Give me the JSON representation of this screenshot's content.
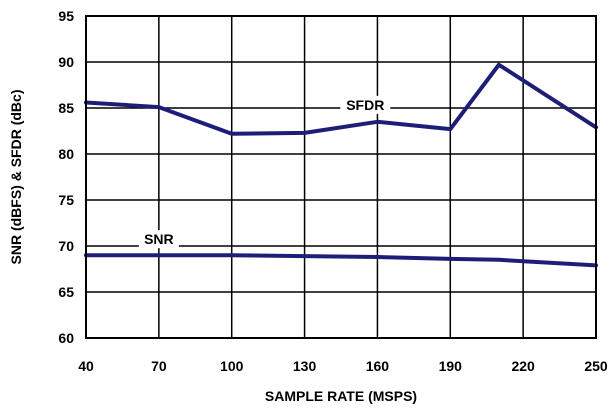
{
  "colors": {
    "series": "#1e1e78",
    "grid": "#000000",
    "frame": "#000000"
  },
  "chart_data": {
    "type": "line",
    "title": "",
    "xlabel": "SAMPLE RATE (MSPS)",
    "ylabel": "SNR (dBFS) & SFDR (dBc)",
    "xlim": [
      40,
      250
    ],
    "ylim": [
      60,
      95
    ],
    "xticks": [
      40,
      70,
      100,
      130,
      160,
      190,
      220,
      250
    ],
    "yticks": [
      60,
      65,
      70,
      75,
      80,
      85,
      90,
      95
    ],
    "grid": true,
    "legend": "none",
    "series": [
      {
        "name": "SFDR",
        "x": [
          40,
          70,
          100,
          130,
          160,
          190,
          210,
          250
        ],
        "y": [
          85.6,
          85.1,
          82.2,
          82.3,
          83.5,
          82.7,
          89.7,
          82.9
        ],
        "label_at": [
          155,
          84.8
        ]
      },
      {
        "name": "SNR",
        "x": [
          40,
          70,
          100,
          130,
          160,
          190,
          210,
          250
        ],
        "y": [
          69.0,
          69.0,
          69.0,
          68.9,
          68.8,
          68.6,
          68.5,
          67.9
        ],
        "label_at": [
          70,
          70.2
        ]
      }
    ]
  }
}
